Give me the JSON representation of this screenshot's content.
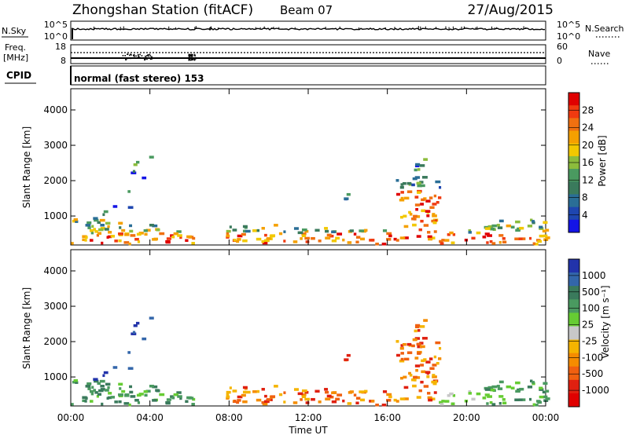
{
  "header": {
    "station": "Zhongshan Station (fitACF)",
    "beam": "Beam 07",
    "date": "27/Aug/2015"
  },
  "strips": {
    "nsky_label": "N.Sky",
    "nsky_ticks": [
      "10^5",
      "10^0"
    ],
    "nsearch_label": "N.Search",
    "freq_label": "Freq.",
    "freq_unit": "[MHz]",
    "freq_ticks": [
      "18",
      "8"
    ],
    "nave_label": "Nave",
    "nave_ticks": [
      "60",
      "0"
    ],
    "cpid_label": "CPID",
    "cpid_text": "normal (fast stereo) 153"
  },
  "chart_data": [
    {
      "type": "heatmap",
      "panel": "power",
      "ylabel": "Slant Range [km]",
      "yticks": [
        1000,
        2000,
        3000,
        4000
      ],
      "ylim": [
        180,
        4600
      ],
      "colorbar": {
        "label": "Power [dB]",
        "ticks": [
          "28",
          "24",
          "20",
          "16",
          "12",
          "8",
          "4"
        ],
        "colors": [
          "#e00000",
          "#f03a10",
          "#f07010",
          "#f5a000",
          "#f2c800",
          "#8cbc3c",
          "#4a9a60",
          "#3a7a5c",
          "#2a6e96",
          "#1e46b0",
          "#1414e6"
        ]
      }
    },
    {
      "type": "heatmap",
      "panel": "velocity",
      "ylabel": "Slant Range [km]",
      "yticks": [
        1000,
        2000,
        3000,
        4000
      ],
      "ylim": [
        180,
        4600
      ],
      "colorbar": {
        "label": "Velocity [m s⁻¹]",
        "ticks": [
          "1000",
          "500",
          "100",
          "25",
          "-25",
          "-100",
          "-500",
          "-1000"
        ],
        "colors": [
          "#2233aa",
          "#3366aa",
          "#3a7a5c",
          "#4a9a60",
          "#66cc33",
          "#c8c8c8",
          "#f5b400",
          "#f58c00",
          "#f06010",
          "#e02010",
          "#e00000"
        ]
      }
    }
  ],
  "xaxis": {
    "label": "Time UT",
    "ticks": [
      "00:00",
      "04:00",
      "08:00",
      "12:00",
      "16:00",
      "20:00",
      "00:00"
    ]
  },
  "colors": {
    "power_scale": [
      "#1414e6",
      "#1e46b0",
      "#2a6e96",
      "#3a7a5c",
      "#4a9a60",
      "#8cbc3c",
      "#f2c800",
      "#f5a000",
      "#f07010",
      "#f03a10",
      "#e00000"
    ],
    "velocity_scale": [
      "#e00000",
      "#e02010",
      "#f06010",
      "#f58c00",
      "#f5b400",
      "#c8c8c8",
      "#66cc33",
      "#4a9a60",
      "#3a7a5c",
      "#3366aa",
      "#2233aa"
    ]
  }
}
